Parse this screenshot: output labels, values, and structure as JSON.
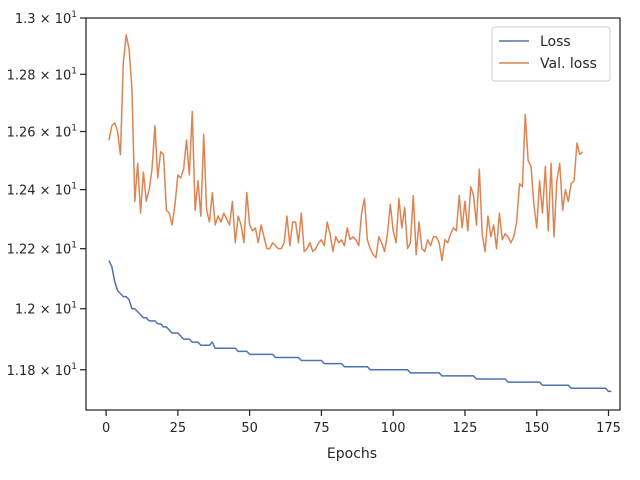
{
  "chart_data": {
    "type": "line",
    "title": "",
    "xlabel": "Epochs",
    "ylabel": "",
    "y_scale": "log",
    "xlim": [
      -7,
      179
    ],
    "ylim": [
      11.67,
      13.0
    ],
    "grid": false,
    "legend_position": "top-right",
    "x_ticks": [
      0,
      25,
      50,
      75,
      100,
      125,
      150,
      175
    ],
    "x_tick_labels": [
      "0",
      "25",
      "50",
      "75",
      "100",
      "125",
      "150",
      "175"
    ],
    "y_ticks": [
      {
        "value": 11.8,
        "mantissa": "1.18",
        "exponent": "1"
      },
      {
        "value": 12.0,
        "mantissa": "1.2",
        "exponent": "1"
      },
      {
        "value": 12.2,
        "mantissa": "1.22",
        "exponent": "1"
      },
      {
        "value": 12.4,
        "mantissa": "1.24",
        "exponent": "1"
      },
      {
        "value": 12.6,
        "mantissa": "1.26",
        "exponent": "1"
      },
      {
        "value": 12.8,
        "mantissa": "1.28",
        "exponent": "1"
      },
      {
        "value": 13.0,
        "mantissa": "1.3",
        "exponent": "1"
      }
    ],
    "series": [
      {
        "name": "Loss",
        "color": "#4c72b0",
        "x_start": 1,
        "y": [
          12.16,
          12.14,
          12.09,
          12.06,
          12.05,
          12.04,
          12.04,
          12.03,
          12.0,
          12.0,
          11.99,
          11.98,
          11.97,
          11.97,
          11.96,
          11.96,
          11.96,
          11.95,
          11.95,
          11.94,
          11.94,
          11.93,
          11.92,
          11.92,
          11.92,
          11.91,
          11.9,
          11.9,
          11.9,
          11.89,
          11.89,
          11.89,
          11.88,
          11.88,
          11.88,
          11.88,
          11.89,
          11.87,
          11.87,
          11.87,
          11.87,
          11.87,
          11.87,
          11.87,
          11.87,
          11.86,
          11.86,
          11.86,
          11.86,
          11.85,
          11.85,
          11.85,
          11.85,
          11.85,
          11.85,
          11.85,
          11.85,
          11.85,
          11.84,
          11.84,
          11.84,
          11.84,
          11.84,
          11.84,
          11.84,
          11.84,
          11.84,
          11.83,
          11.83,
          11.83,
          11.83,
          11.83,
          11.83,
          11.83,
          11.83,
          11.82,
          11.82,
          11.82,
          11.82,
          11.82,
          11.82,
          11.82,
          11.81,
          11.81,
          11.81,
          11.81,
          11.81,
          11.81,
          11.81,
          11.81,
          11.81,
          11.8,
          11.8,
          11.8,
          11.8,
          11.8,
          11.8,
          11.8,
          11.8,
          11.8,
          11.8,
          11.8,
          11.8,
          11.8,
          11.8,
          11.79,
          11.79,
          11.79,
          11.79,
          11.79,
          11.79,
          11.79,
          11.79,
          11.79,
          11.79,
          11.79,
          11.78,
          11.78,
          11.78,
          11.78,
          11.78,
          11.78,
          11.78,
          11.78,
          11.78,
          11.78,
          11.78,
          11.78,
          11.77,
          11.77,
          11.77,
          11.77,
          11.77,
          11.77,
          11.77,
          11.77,
          11.77,
          11.77,
          11.77,
          11.76,
          11.76,
          11.76,
          11.76,
          11.76,
          11.76,
          11.76,
          11.76,
          11.76,
          11.76,
          11.76,
          11.76,
          11.75,
          11.75,
          11.75,
          11.75,
          11.75,
          11.75,
          11.75,
          11.75,
          11.75,
          11.75,
          11.74,
          11.74,
          11.74,
          11.74,
          11.74,
          11.74,
          11.74,
          11.74,
          11.74,
          11.74,
          11.74,
          11.74,
          11.74,
          11.73,
          11.73
        ]
      },
      {
        "name": "Val. loss",
        "color": "#dd8452",
        "x_start": 1,
        "y": [
          12.57,
          12.62,
          12.63,
          12.6,
          12.52,
          12.84,
          12.94,
          12.89,
          12.75,
          12.36,
          12.49,
          12.32,
          12.46,
          12.36,
          12.4,
          12.47,
          12.62,
          12.44,
          12.53,
          12.52,
          12.33,
          12.32,
          12.28,
          12.35,
          12.45,
          12.44,
          12.47,
          12.57,
          12.45,
          12.67,
          12.33,
          12.43,
          12.31,
          12.59,
          12.33,
          12.29,
          12.39,
          12.28,
          12.31,
          12.29,
          12.32,
          12.3,
          12.28,
          12.36,
          12.22,
          12.31,
          12.28,
          12.22,
          12.39,
          12.28,
          12.26,
          12.27,
          12.22,
          12.28,
          12.24,
          12.2,
          12.2,
          12.22,
          12.21,
          12.2,
          12.2,
          12.22,
          12.31,
          12.21,
          12.29,
          12.29,
          12.22,
          12.32,
          12.19,
          12.2,
          12.22,
          12.19,
          12.2,
          12.22,
          12.23,
          12.21,
          12.29,
          12.25,
          12.19,
          12.24,
          12.22,
          12.23,
          12.21,
          12.27,
          12.23,
          12.24,
          12.23,
          12.21,
          12.32,
          12.37,
          12.23,
          12.2,
          12.18,
          12.17,
          12.24,
          12.22,
          12.19,
          12.25,
          12.35,
          12.26,
          12.22,
          12.37,
          12.27,
          12.34,
          12.2,
          12.22,
          12.38,
          12.18,
          12.29,
          12.2,
          12.19,
          12.23,
          12.21,
          12.24,
          12.24,
          12.22,
          12.16,
          12.23,
          12.22,
          12.25,
          12.27,
          12.26,
          12.38,
          12.27,
          12.36,
          12.26,
          12.41,
          12.38,
          12.28,
          12.47,
          12.25,
          12.19,
          12.31,
          12.24,
          12.28,
          12.2,
          12.32,
          12.23,
          12.25,
          12.24,
          12.22,
          12.24,
          12.29,
          12.42,
          12.41,
          12.66,
          12.5,
          12.48,
          12.35,
          12.27,
          12.43,
          12.32,
          12.48,
          12.26,
          12.49,
          12.24,
          12.43,
          12.49,
          12.33,
          12.4,
          12.36,
          12.42,
          12.43,
          12.56,
          12.52,
          12.53
        ]
      }
    ]
  }
}
